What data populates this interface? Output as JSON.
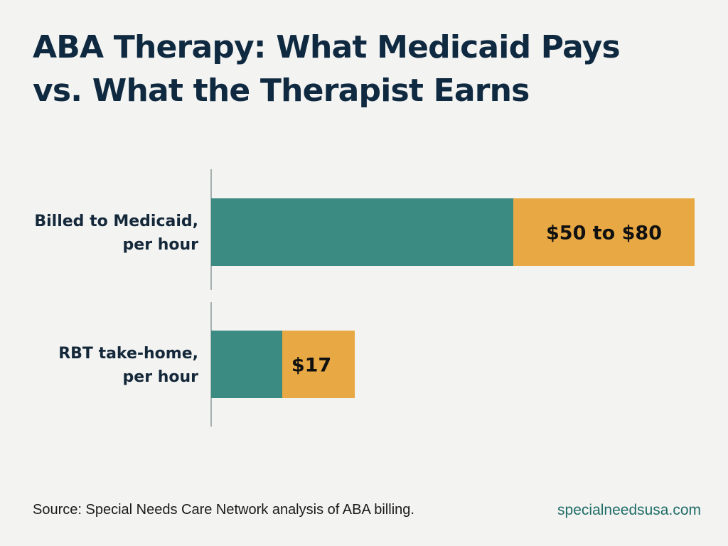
{
  "title": {
    "line1": "ABA Therapy: What Medicaid Pays",
    "line2": "vs. What the Therapist Earns"
  },
  "colors": {
    "teal": "#3b8b83",
    "gold": "#e8a843",
    "axis": "#8a9a9a",
    "title": "#0f2a40",
    "site": "#1f6d66"
  },
  "chart_data": {
    "type": "bar",
    "orientation": "horizontal",
    "stacked": true,
    "categories": [
      {
        "lines": [
          "Billed to Medicaid,",
          "per hour"
        ],
        "value_label": "$50 to $80"
      },
      {
        "lines": [
          "RBT take-home,",
          "per hour"
        ],
        "value_label": "$17"
      }
    ],
    "series": [
      {
        "values": [
          50,
          17
        ],
        "color": "#3b8b83"
      },
      {
        "values": [
          30,
          0
        ],
        "color": "#e8a843"
      }
    ],
    "gridlines": false,
    "legend": "none"
  },
  "footer": {
    "source": "Source: Special Needs Care Network analysis of ABA billing.",
    "site": "specialneedsusa.com"
  }
}
